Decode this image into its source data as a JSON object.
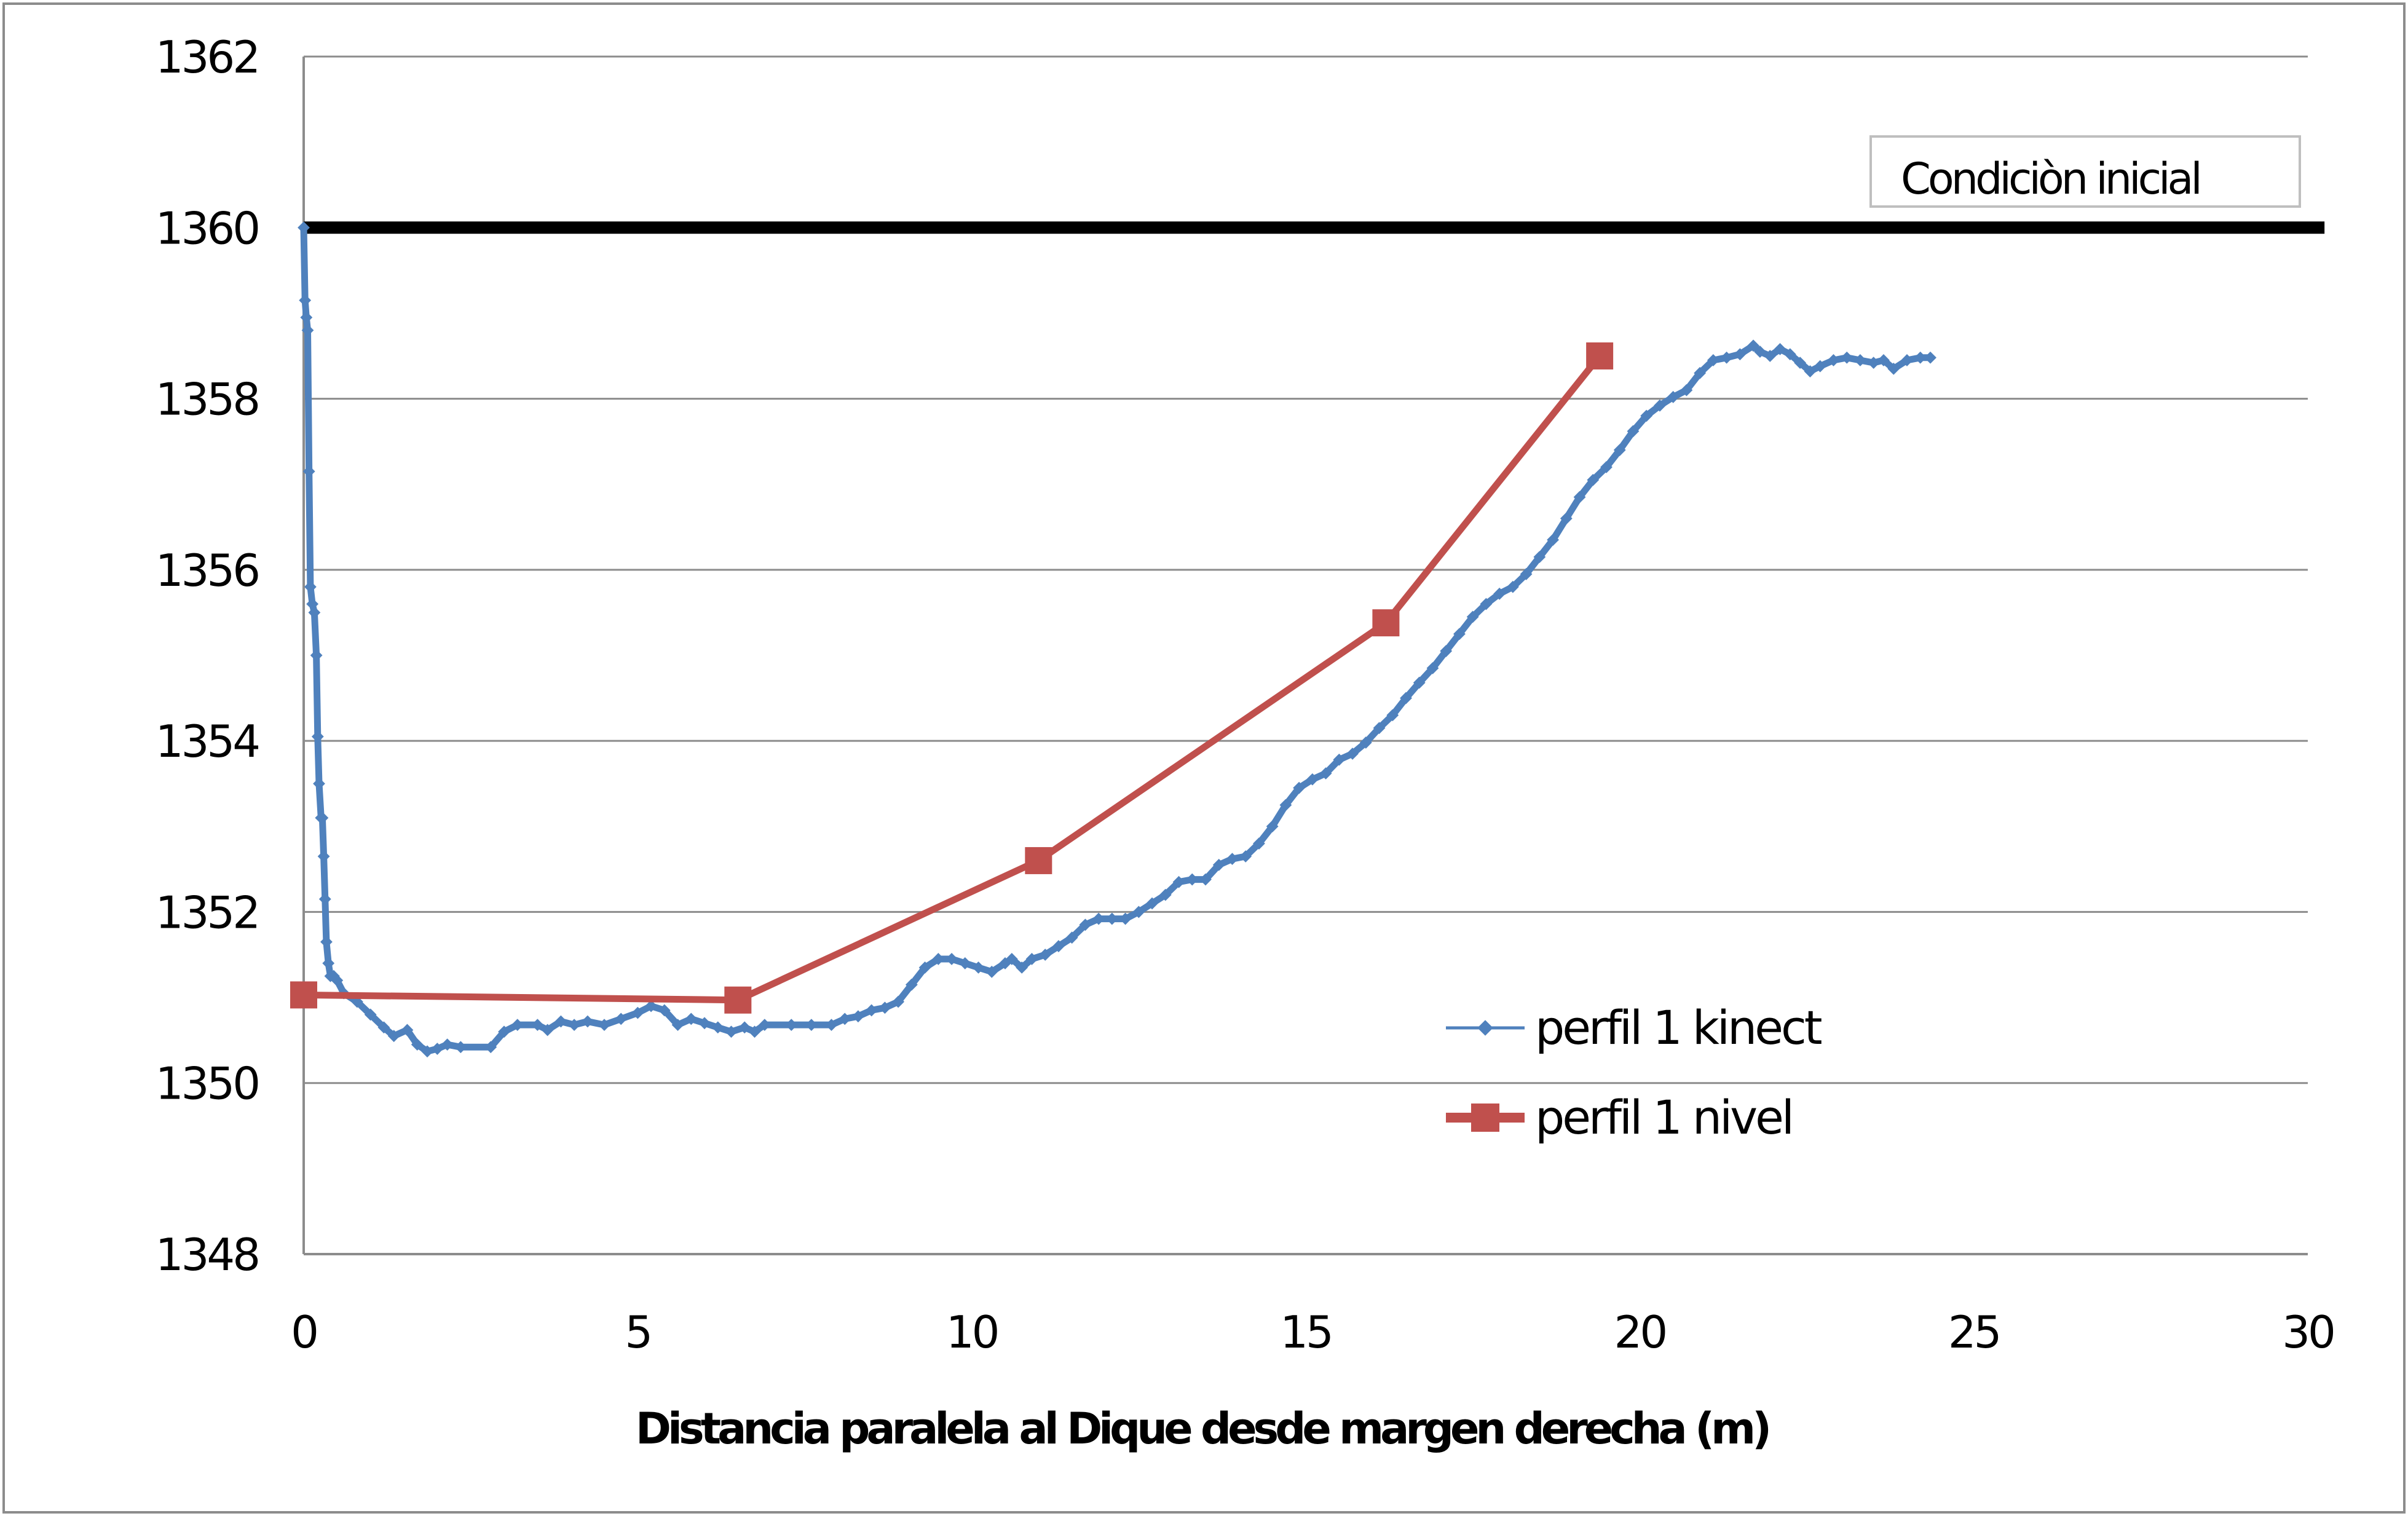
{
  "chart_data": {
    "type": "line",
    "title": "",
    "xlabel": "Distancia paralela al Dique desde margen derecha (m)",
    "ylabel": "",
    "xlim": [
      0,
      30
    ],
    "ylim": [
      1348,
      1362
    ],
    "x_ticks": [
      "0",
      "5",
      "10",
      "15",
      "20",
      "25",
      "30"
    ],
    "y_ticks": [
      "1348",
      "1350",
      "1352",
      "1354",
      "1356",
      "1358",
      "1360",
      "1362"
    ],
    "grid": "horizontal",
    "legend_position": "lower-right",
    "annotations": [
      {
        "text": "Condiciòn inicial",
        "y": 1360
      }
    ],
    "reference_line": {
      "y": 1360,
      "x_range": [
        0,
        30.25
      ],
      "color": "#000000"
    },
    "series": [
      {
        "name": "perfil 1 kinect",
        "color": "#4F81BD",
        "marker": "diamond",
        "points": [
          [
            0.0,
            1360.0
          ],
          [
            0.02,
            1359.15
          ],
          [
            0.04,
            1358.95
          ],
          [
            0.06,
            1358.8
          ],
          [
            0.08,
            1357.15
          ],
          [
            0.1,
            1355.8
          ],
          [
            0.13,
            1355.6
          ],
          [
            0.16,
            1355.5
          ],
          [
            0.19,
            1355.0
          ],
          [
            0.21,
            1354.05
          ],
          [
            0.23,
            1353.5
          ],
          [
            0.26,
            1353.1
          ],
          [
            0.28,
            1353.1
          ],
          [
            0.3,
            1352.65
          ],
          [
            0.32,
            1352.15
          ],
          [
            0.34,
            1351.65
          ],
          [
            0.37,
            1351.4
          ],
          [
            0.4,
            1351.25
          ],
          [
            0.45,
            1351.25
          ],
          [
            0.5,
            1351.2
          ],
          [
            0.6,
            1351.05
          ],
          [
            0.8,
            1350.95
          ],
          [
            1.0,
            1350.8
          ],
          [
            1.2,
            1350.65
          ],
          [
            1.35,
            1350.55
          ],
          [
            1.55,
            1350.62
          ],
          [
            1.7,
            1350.45
          ],
          [
            1.85,
            1350.37
          ],
          [
            2.0,
            1350.4
          ],
          [
            2.15,
            1350.45
          ],
          [
            2.35,
            1350.42
          ],
          [
            2.8,
            1350.42
          ],
          [
            3.0,
            1350.6
          ],
          [
            3.2,
            1350.68
          ],
          [
            3.5,
            1350.68
          ],
          [
            3.65,
            1350.62
          ],
          [
            3.85,
            1350.72
          ],
          [
            4.05,
            1350.68
          ],
          [
            4.25,
            1350.72
          ],
          [
            4.5,
            1350.68
          ],
          [
            4.75,
            1350.75
          ],
          [
            5.0,
            1350.82
          ],
          [
            5.2,
            1350.9
          ],
          [
            5.4,
            1350.85
          ],
          [
            5.6,
            1350.68
          ],
          [
            5.8,
            1350.75
          ],
          [
            6.0,
            1350.7
          ],
          [
            6.2,
            1350.65
          ],
          [
            6.4,
            1350.6
          ],
          [
            6.6,
            1350.65
          ],
          [
            6.75,
            1350.6
          ],
          [
            6.9,
            1350.68
          ],
          [
            7.3,
            1350.68
          ],
          [
            7.6,
            1350.68
          ],
          [
            7.9,
            1350.68
          ],
          [
            8.1,
            1350.75
          ],
          [
            8.3,
            1350.78
          ],
          [
            8.5,
            1350.85
          ],
          [
            8.7,
            1350.88
          ],
          [
            8.9,
            1350.95
          ],
          [
            9.1,
            1351.15
          ],
          [
            9.3,
            1351.35
          ],
          [
            9.5,
            1351.45
          ],
          [
            9.7,
            1351.45
          ],
          [
            9.9,
            1351.4
          ],
          [
            10.1,
            1351.35
          ],
          [
            10.3,
            1351.3
          ],
          [
            10.5,
            1351.4
          ],
          [
            10.6,
            1351.45
          ],
          [
            10.75,
            1351.35
          ],
          [
            10.9,
            1351.45
          ],
          [
            11.1,
            1351.5
          ],
          [
            11.3,
            1351.6
          ],
          [
            11.5,
            1351.7
          ],
          [
            11.7,
            1351.85
          ],
          [
            11.9,
            1351.92
          ],
          [
            12.1,
            1351.92
          ],
          [
            12.3,
            1351.92
          ],
          [
            12.5,
            1352.0
          ],
          [
            12.7,
            1352.1
          ],
          [
            12.9,
            1352.2
          ],
          [
            13.1,
            1352.35
          ],
          [
            13.3,
            1352.38
          ],
          [
            13.5,
            1352.38
          ],
          [
            13.7,
            1352.55
          ],
          [
            13.9,
            1352.62
          ],
          [
            14.1,
            1352.65
          ],
          [
            14.3,
            1352.8
          ],
          [
            14.5,
            1353.0
          ],
          [
            14.7,
            1353.25
          ],
          [
            14.9,
            1353.45
          ],
          [
            15.1,
            1353.55
          ],
          [
            15.3,
            1353.62
          ],
          [
            15.5,
            1353.78
          ],
          [
            15.7,
            1353.85
          ],
          [
            15.9,
            1353.98
          ],
          [
            16.1,
            1354.15
          ],
          [
            16.3,
            1354.3
          ],
          [
            16.5,
            1354.5
          ],
          [
            16.7,
            1354.68
          ],
          [
            16.9,
            1354.85
          ],
          [
            17.1,
            1355.05
          ],
          [
            17.3,
            1355.25
          ],
          [
            17.5,
            1355.45
          ],
          [
            17.7,
            1355.6
          ],
          [
            17.9,
            1355.72
          ],
          [
            18.1,
            1355.8
          ],
          [
            18.3,
            1355.95
          ],
          [
            18.5,
            1356.15
          ],
          [
            18.7,
            1356.35
          ],
          [
            18.9,
            1356.6
          ],
          [
            19.1,
            1356.85
          ],
          [
            19.3,
            1357.05
          ],
          [
            19.5,
            1357.2
          ],
          [
            19.7,
            1357.4
          ],
          [
            19.9,
            1357.62
          ],
          [
            20.1,
            1357.8
          ],
          [
            20.3,
            1357.92
          ],
          [
            20.5,
            1358.02
          ],
          [
            20.7,
            1358.1
          ],
          [
            20.9,
            1358.3
          ],
          [
            21.1,
            1358.45
          ],
          [
            21.3,
            1358.48
          ],
          [
            21.5,
            1358.52
          ],
          [
            21.7,
            1358.62
          ],
          [
            21.8,
            1358.55
          ],
          [
            21.95,
            1358.5
          ],
          [
            22.1,
            1358.58
          ],
          [
            22.25,
            1358.52
          ],
          [
            22.4,
            1358.42
          ],
          [
            22.55,
            1358.32
          ],
          [
            22.7,
            1358.38
          ],
          [
            22.9,
            1358.45
          ],
          [
            23.1,
            1358.48
          ],
          [
            23.3,
            1358.45
          ],
          [
            23.5,
            1358.42
          ],
          [
            23.65,
            1358.45
          ],
          [
            23.8,
            1358.35
          ],
          [
            24.0,
            1358.45
          ],
          [
            24.2,
            1358.48
          ],
          [
            24.35,
            1358.48
          ]
        ]
      },
      {
        "name": "perfil 1 nivel",
        "color": "#C0504D",
        "marker": "square",
        "points": [
          [
            0.0,
            1351.03
          ],
          [
            6.5,
            1350.97
          ],
          [
            11.0,
            1352.6
          ],
          [
            16.2,
            1355.38
          ],
          [
            19.4,
            1358.5
          ]
        ]
      }
    ]
  }
}
